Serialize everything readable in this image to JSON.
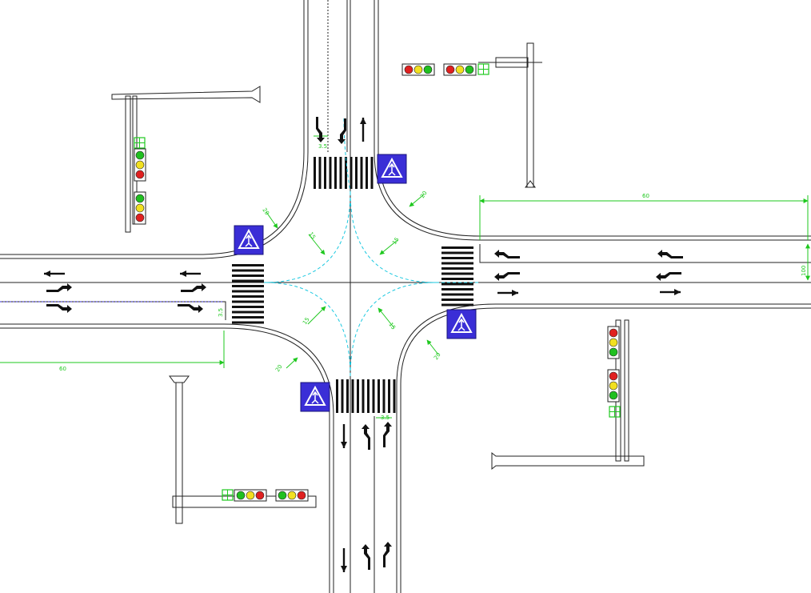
{
  "dimensions": {
    "left_distance": "60",
    "right_distance": "60",
    "right_offset": "100",
    "lane_width_north": "3.5",
    "lane_width_west": "3.5",
    "lane_width_south": "3.5",
    "curb_radius_nw": "20",
    "curb_radius_ne": "20",
    "curb_radius_sw": "20",
    "curb_radius_se": "20",
    "turn_radius_nw": "15",
    "turn_radius_ne": "15",
    "turn_radius_sw": "15",
    "turn_radius_se": "15"
  },
  "colors": {
    "road_line": "#222222",
    "dimension": "#1ec81e",
    "turn_path": "#18c8e0",
    "sign_blue": "#3a2ed6",
    "signal_red": "#e02020",
    "signal_yellow": "#f2e020",
    "signal_green": "#20c020"
  },
  "icons": {
    "sign": "pedestrian-crossing-sign-icon",
    "signal_head": "traffic-signal-head-icon",
    "arrow": "lane-arrow-icon"
  },
  "signal_sets": [
    {
      "id": "north-east",
      "heads": [
        [
          "red",
          "yellow",
          "green"
        ],
        [
          "red",
          "yellow",
          "green"
        ]
      ]
    },
    {
      "id": "north-west",
      "heads": [
        [
          "green",
          "yellow",
          "red"
        ],
        [
          "green",
          "yellow",
          "red"
        ]
      ]
    },
    {
      "id": "south-east",
      "heads": [
        [
          "red",
          "yellow",
          "green"
        ],
        [
          "red",
          "yellow",
          "green"
        ]
      ]
    },
    {
      "id": "south-west",
      "heads": [
        [
          "green",
          "yellow",
          "red"
        ],
        [
          "green",
          "yellow",
          "red"
        ]
      ]
    }
  ]
}
